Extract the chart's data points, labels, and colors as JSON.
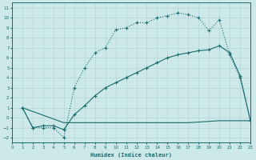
{
  "xlabel": "Humidex (Indice chaleur)",
  "background_color": "#cce8e8",
  "grid_color": "#b8d8d8",
  "line_color": "#1a6b6b",
  "xlim": [
    0,
    23
  ],
  "ylim": [
    -2.5,
    11.5
  ],
  "xticks": [
    0,
    1,
    2,
    3,
    4,
    5,
    6,
    7,
    8,
    9,
    10,
    11,
    12,
    13,
    14,
    15,
    16,
    17,
    18,
    19,
    20,
    21,
    22,
    23
  ],
  "yticks": [
    -2,
    -1,
    0,
    1,
    2,
    3,
    4,
    5,
    6,
    7,
    8,
    9,
    10,
    11
  ],
  "curve1_x": [
    1,
    2,
    3,
    4,
    5,
    6,
    7,
    8,
    9,
    10,
    11,
    12,
    13,
    14,
    15,
    16,
    17,
    18,
    19,
    20,
    21,
    22,
    23
  ],
  "curve1_y": [
    1.0,
    -1.0,
    -1.0,
    -1.0,
    -2.0,
    3.0,
    5.0,
    6.5,
    7.0,
    8.8,
    9.0,
    9.5,
    9.5,
    10.0,
    10.2,
    10.5,
    10.3,
    10.0,
    8.7,
    9.8,
    6.3,
    4.0,
    -0.3
  ],
  "curve2_x": [
    1,
    2,
    3,
    4,
    5,
    6,
    7,
    8,
    9,
    10,
    11,
    12,
    13,
    14,
    15,
    16,
    17,
    18,
    19,
    20,
    21,
    22,
    23
  ],
  "curve2_y": [
    1.0,
    -1.0,
    -0.8,
    -0.8,
    -1.2,
    0.3,
    1.2,
    2.2,
    3.0,
    3.5,
    4.0,
    4.5,
    5.0,
    5.5,
    6.0,
    6.3,
    6.5,
    6.7,
    6.8,
    7.2,
    6.5,
    4.2,
    -0.3
  ],
  "curve3_x": [
    1,
    5,
    6,
    10,
    16,
    17,
    20,
    21,
    22,
    23
  ],
  "curve3_y": [
    1.0,
    -0.5,
    -0.5,
    -0.5,
    -0.5,
    -0.5,
    -0.3,
    -0.3,
    -0.3,
    -0.3
  ]
}
